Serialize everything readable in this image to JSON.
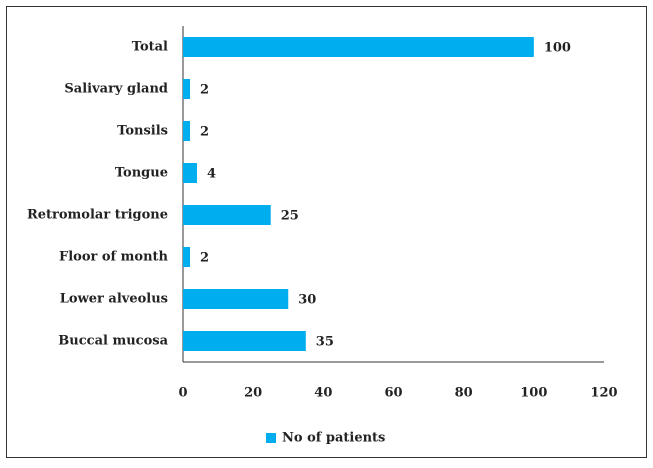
{
  "chart_data": {
    "type": "bar",
    "orientation": "horizontal",
    "categories": [
      "Total",
      "Salivary gland",
      "Tonsils",
      "Tongue",
      "Retromolar trigone",
      "Floor of month",
      "Lower alveolus",
      "Buccal mucosa"
    ],
    "series": [
      {
        "name": "No of patients",
        "color": "#00adef",
        "values": [
          100,
          2,
          2,
          4,
          25,
          2,
          30,
          35
        ]
      }
    ],
    "xlim": [
      0,
      120
    ],
    "xticks": [
      0,
      20,
      40,
      60,
      80,
      100,
      120
    ],
    "legend": "bottom",
    "grid": false
  }
}
